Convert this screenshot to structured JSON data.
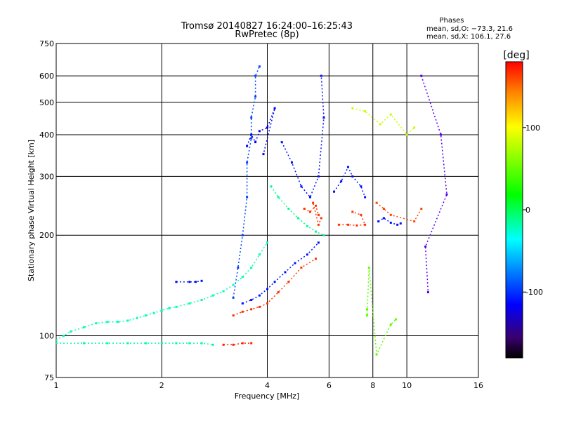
{
  "chart_data": {
    "type": "scatter",
    "title": "Tromsø 20140827 16:24:00–16:25:43",
    "subtitle": "RwPretec (8p)",
    "stats": {
      "heading": "Phases",
      "o_line": "mean, sd,O: −73.3, 21.6",
      "x_line": "mean, sd,X: 106.1, 27.6"
    },
    "xlabel": "Frequency [MHz]",
    "ylabel": "Stationary phase Virtual Height [km]",
    "x_scale": "log",
    "y_scale": "log",
    "xlim": [
      1,
      16
    ],
    "ylim": [
      75,
      750
    ],
    "x_ticks": [
      1,
      2,
      4,
      6,
      8,
      10,
      16
    ],
    "x_tick_labels": [
      "1",
      "2",
      "4",
      "6",
      "8",
      "10",
      "16"
    ],
    "y_ticks": [
      75,
      100,
      200,
      300,
      400,
      500,
      600,
      750
    ],
    "y_tick_labels": [
      "75",
      "100",
      "200",
      "300",
      "400",
      "500",
      "600",
      "750"
    ],
    "grid_x": [
      2,
      4,
      6,
      8,
      10
    ],
    "grid_y": [
      100,
      200,
      300,
      400,
      500,
      600
    ],
    "grid": true,
    "colorbar": {
      "label": "[deg]",
      "range": [
        -180,
        180
      ],
      "ticks": [
        100,
        0,
        -100
      ],
      "tick_labels": [
        "100",
        "0",
        "-100"
      ]
    },
    "series": [
      {
        "values": [
          [
            1.0,
            97
          ],
          [
            1.05,
            100
          ],
          [
            1.1,
            103
          ],
          [
            1.2,
            106
          ],
          [
            1.3,
            109
          ],
          [
            1.4,
            110
          ],
          [
            1.5,
            110
          ],
          [
            1.6,
            111
          ],
          [
            1.7,
            113
          ],
          [
            1.8,
            115
          ],
          [
            1.9,
            117
          ],
          [
            2.0,
            119
          ],
          [
            2.1,
            121
          ],
          [
            2.2,
            122
          ],
          [
            2.4,
            125
          ],
          [
            2.6,
            128
          ],
          [
            2.8,
            132
          ],
          [
            3.0,
            136
          ],
          [
            3.2,
            142
          ],
          [
            3.4,
            150
          ],
          [
            3.6,
            160
          ],
          [
            3.8,
            175
          ],
          [
            4.0,
            190
          ]
        ],
        "phase": -20
      },
      {
        "values": [
          [
            1.0,
            95
          ],
          [
            1.2,
            95
          ],
          [
            1.4,
            95
          ],
          [
            1.6,
            95
          ],
          [
            1.8,
            95
          ],
          [
            2.0,
            95
          ],
          [
            2.2,
            95
          ],
          [
            2.4,
            95
          ],
          [
            2.6,
            95
          ],
          [
            2.8,
            94
          ]
        ],
        "phase": -15
      },
      {
        "values": [
          [
            3.0,
            94
          ],
          [
            3.2,
            94
          ],
          [
            3.4,
            95
          ],
          [
            3.6,
            95
          ]
        ],
        "phase": 170
      },
      {
        "values": [
          [
            2.2,
            145
          ],
          [
            2.4,
            145
          ],
          [
            2.5,
            145
          ],
          [
            2.6,
            146
          ]
        ],
        "phase": -110
      },
      {
        "values": [
          [
            3.2,
            130
          ],
          [
            3.3,
            160
          ],
          [
            3.4,
            200
          ],
          [
            3.5,
            260
          ],
          [
            3.5,
            330
          ],
          [
            3.6,
            390
          ],
          [
            3.6,
            450
          ],
          [
            3.7,
            520
          ],
          [
            3.7,
            600
          ],
          [
            3.8,
            640
          ]
        ],
        "phase": -95
      },
      {
        "values": [
          [
            3.5,
            370
          ],
          [
            3.6,
            400
          ],
          [
            3.7,
            380
          ],
          [
            3.8,
            410
          ],
          [
            4.0,
            420
          ],
          [
            4.2,
            480
          ],
          [
            3.9,
            350
          ]
        ],
        "phase": -115
      },
      {
        "values": [
          [
            4.1,
            280
          ],
          [
            4.3,
            260
          ],
          [
            4.6,
            240
          ],
          [
            4.9,
            225
          ],
          [
            5.2,
            213
          ],
          [
            5.5,
            205
          ],
          [
            5.8,
            200
          ]
        ],
        "phase": -10
      },
      {
        "values": [
          [
            3.4,
            125
          ],
          [
            3.6,
            128
          ],
          [
            3.8,
            132
          ],
          [
            4.0,
            138
          ],
          [
            4.2,
            145
          ],
          [
            4.5,
            155
          ],
          [
            4.8,
            165
          ],
          [
            5.2,
            175
          ],
          [
            5.6,
            190
          ]
        ],
        "phase": -110
      },
      {
        "values": [
          [
            3.2,
            115
          ],
          [
            3.4,
            118
          ],
          [
            3.6,
            120
          ],
          [
            3.8,
            122
          ],
          [
            4.0,
            125
          ],
          [
            4.3,
            135
          ],
          [
            4.6,
            145
          ],
          [
            5.0,
            160
          ],
          [
            5.5,
            170
          ]
        ],
        "phase": 165
      },
      {
        "values": [
          [
            5.1,
            240
          ],
          [
            5.3,
            235
          ],
          [
            5.5,
            245
          ],
          [
            5.6,
            230
          ],
          [
            5.7,
            225
          ],
          [
            5.6,
            215
          ],
          [
            5.4,
            250
          ]
        ],
        "phase": 165
      },
      {
        "values": [
          [
            4.4,
            380
          ],
          [
            4.7,
            330
          ],
          [
            5.0,
            280
          ],
          [
            5.3,
            260
          ],
          [
            5.6,
            300
          ],
          [
            5.8,
            450
          ],
          [
            5.7,
            600
          ]
        ],
        "phase": -110
      },
      {
        "values": [
          [
            6.4,
            215
          ],
          [
            6.8,
            215
          ],
          [
            7.2,
            214
          ],
          [
            7.6,
            215
          ],
          [
            7.4,
            230
          ],
          [
            7.0,
            235
          ]
        ],
        "phase": 165
      },
      {
        "values": [
          [
            6.2,
            270
          ],
          [
            6.5,
            290
          ],
          [
            6.8,
            320
          ],
          [
            7.0,
            300
          ],
          [
            7.4,
            280
          ],
          [
            7.6,
            260
          ]
        ],
        "phase": -110
      },
      {
        "values": [
          [
            8.3,
            220
          ],
          [
            8.6,
            225
          ],
          [
            9.0,
            218
          ],
          [
            9.4,
            215
          ],
          [
            9.6,
            217
          ]
        ],
        "phase": -110
      },
      {
        "values": [
          [
            8.2,
            250
          ],
          [
            8.6,
            240
          ],
          [
            9.0,
            230
          ],
          [
            10.5,
            220
          ],
          [
            11.0,
            240
          ]
        ],
        "phase": 160
      },
      {
        "values": [
          [
            7.0,
            480
          ],
          [
            7.6,
            470
          ],
          [
            8.4,
            430
          ],
          [
            9.0,
            460
          ],
          [
            10.0,
            400
          ],
          [
            10.5,
            420
          ]
        ],
        "phase": 90
      },
      {
        "values": [
          [
            11.0,
            600
          ],
          [
            12.5,
            400
          ],
          [
            13.0,
            265
          ],
          [
            11.3,
            185
          ],
          [
            11.5,
            135
          ]
        ],
        "phase": -120
      },
      {
        "values": [
          [
            7.7,
            120
          ],
          [
            7.7,
            115
          ],
          [
            7.8,
            160
          ],
          [
            8.2,
            88
          ],
          [
            9.0,
            108
          ],
          [
            9.3,
            112
          ]
        ],
        "phase": 60
      }
    ]
  }
}
